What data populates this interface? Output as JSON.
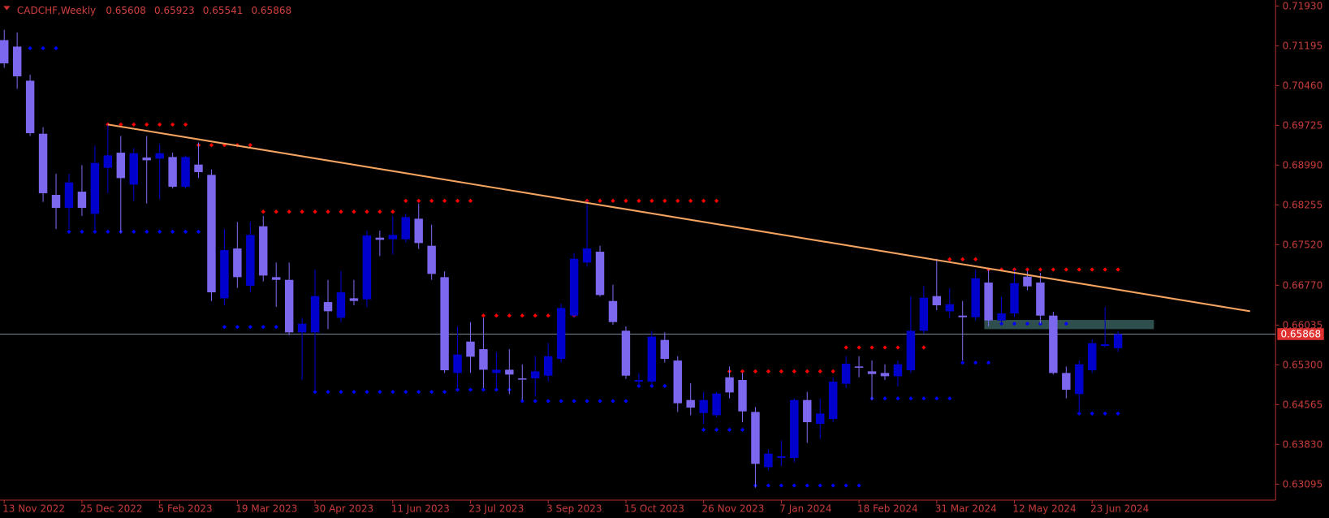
{
  "chart_data": {
    "type": "candlestick",
    "title": "CADCHF,Weekly",
    "categories": [
      "13 Nov 2022",
      null,
      null,
      null,
      null,
      null,
      "25 Dec 2022",
      null,
      null,
      null,
      null,
      null,
      "5 Feb 2023",
      null,
      null,
      null,
      null,
      null,
      "19 Mar 2023",
      null,
      null,
      null,
      null,
      null,
      "30 Apr 2023",
      null,
      null,
      null,
      null,
      null,
      "11 Jun 2023",
      null,
      null,
      null,
      null,
      null,
      "23 Jul 2023",
      null,
      null,
      null,
      null,
      null,
      "3 Sep 2023",
      null,
      null,
      null,
      null,
      null,
      "15 Oct 2023",
      null,
      null,
      null,
      null,
      null,
      "26 Nov 2023",
      null,
      null,
      null,
      null,
      null,
      "7 Jan 2024",
      null,
      null,
      null,
      null,
      null,
      "18 Feb 2024",
      null,
      null,
      null,
      null,
      null,
      "31 Mar 2024",
      null,
      null,
      null,
      null,
      null,
      "12 May 2024",
      null,
      null,
      null,
      null,
      null,
      "23 Jun 2024",
      null,
      null
    ],
    "open": [
      0.713,
      0.7118,
      0.7055,
      0.6957,
      0.6844,
      0.682,
      0.685,
      0.6809,
      0.6894,
      0.6922,
      0.6863,
      0.6913,
      0.6911,
      0.6914,
      0.6859,
      0.69,
      0.6881,
      0.6653,
      0.6745,
      0.6676,
      0.6786,
      0.6692,
      0.6687,
      0.659,
      0.659,
      0.6646,
      0.6617,
      0.6653,
      0.6651,
      0.6765,
      0.6762,
      0.6762,
      0.68,
      0.675,
      0.6692,
      0.6515,
      0.6573,
      0.6559,
      0.6515,
      0.6521,
      0.6505,
      0.6505,
      0.651,
      0.6541,
      0.6621,
      0.6719,
      0.6739,
      0.6648,
      0.6593,
      0.6499,
      0.6499,
      0.6576,
      0.6538,
      0.6465,
      0.6441,
      0.6437,
      0.6507,
      0.6502,
      0.6443,
      0.6341,
      0.6358,
      0.6358,
      0.6465,
      0.6421,
      0.643,
      0.6495,
      0.6527,
      0.6518,
      0.6515,
      0.6509,
      0.652,
      0.6593,
      0.6657,
      0.6629,
      0.6621,
      0.6618,
      0.6682,
      0.6612,
      0.6625,
      0.6693,
      0.6682,
      0.6621,
      0.6515,
      0.6476,
      0.652,
      0.6565,
      0.65608
    ],
    "high": [
      0.7149,
      0.7144,
      0.7066,
      0.6969,
      0.6883,
      0.6883,
      0.6899,
      0.6935,
      0.6974,
      0.6953,
      0.693,
      0.6953,
      0.6938,
      0.6922,
      0.6917,
      0.6941,
      0.6891,
      0.6781,
      0.6794,
      0.6794,
      0.6805,
      0.6719,
      0.6719,
      0.6617,
      0.6706,
      0.6687,
      0.6703,
      0.6687,
      0.6778,
      0.6778,
      0.6805,
      0.6809,
      0.6828,
      0.6789,
      0.6703,
      0.6601,
      0.6609,
      0.6617,
      0.6554,
      0.6559,
      0.6531,
      0.6546,
      0.657,
      0.6643,
      0.6737,
      0.6833,
      0.675,
      0.6678,
      0.6601,
      0.6515,
      0.6593,
      0.659,
      0.6546,
      0.6496,
      0.648,
      0.648,
      0.6527,
      0.6515,
      0.6452,
      0.6374,
      0.639,
      0.6468,
      0.648,
      0.6468,
      0.6507,
      0.6546,
      0.6546,
      0.6538,
      0.6531,
      0.6538,
      0.6656,
      0.6675,
      0.6726,
      0.6672,
      0.6648,
      0.6706,
      0.6706,
      0.6656,
      0.6706,
      0.6703,
      0.67,
      0.6628,
      0.6527,
      0.6538,
      0.6577,
      0.6637,
      0.65923
    ],
    "low": [
      0.7079,
      0.704,
      0.6953,
      0.6831,
      0.6781,
      0.6781,
      0.6805,
      0.6773,
      0.6847,
      0.6773,
      0.6833,
      0.6828,
      0.6836,
      0.6856,
      0.6856,
      0.6875,
      0.6648,
      0.664,
      0.6672,
      0.6664,
      0.6684,
      0.6637,
      0.6585,
      0.6502,
      0.6484,
      0.6596,
      0.6609,
      0.664,
      0.6637,
      0.6731,
      0.6734,
      0.6756,
      0.6744,
      0.6687,
      0.6515,
      0.648,
      0.6515,
      0.6487,
      0.6487,
      0.6476,
      0.6465,
      0.6471,
      0.6499,
      0.6534,
      0.6617,
      0.6711,
      0.6656,
      0.6604,
      0.6504,
      0.649,
      0.6491,
      0.6534,
      0.6443,
      0.6437,
      0.6421,
      0.6433,
      0.6468,
      0.6424,
      0.6303,
      0.6335,
      0.6343,
      0.635,
      0.6386,
      0.6393,
      0.6424,
      0.6487,
      0.6507,
      0.6465,
      0.6502,
      0.649,
      0.6515,
      0.6588,
      0.6631,
      0.6617,
      0.6538,
      0.6612,
      0.6601,
      0.6603,
      0.6618,
      0.6668,
      0.6606,
      0.6512,
      0.6468,
      0.6437,
      0.6515,
      0.6562,
      0.65541
    ],
    "close": [
      0.7087,
      0.7063,
      0.6958,
      0.6847,
      0.682,
      0.6867,
      0.682,
      0.6903,
      0.6917,
      0.6875,
      0.6921,
      0.6908,
      0.6921,
      0.6859,
      0.6914,
      0.6886,
      0.6664,
      0.6742,
      0.6692,
      0.677,
      0.6695,
      0.6687,
      0.659,
      0.6606,
      0.6657,
      0.6629,
      0.6664,
      0.6648,
      0.6769,
      0.6761,
      0.677,
      0.6803,
      0.6755,
      0.6698,
      0.652,
      0.6549,
      0.6545,
      0.6521,
      0.6521,
      0.6512,
      0.6504,
      0.6518,
      0.6546,
      0.6635,
      0.6726,
      0.6745,
      0.6659,
      0.6609,
      0.651,
      0.6502,
      0.6582,
      0.6541,
      0.6459,
      0.6451,
      0.6465,
      0.6477,
      0.6479,
      0.6444,
      0.6347,
      0.6366,
      0.6361,
      0.6465,
      0.6424,
      0.644,
      0.6499,
      0.6532,
      0.6526,
      0.6513,
      0.6509,
      0.6531,
      0.6593,
      0.6654,
      0.664,
      0.6642,
      0.6618,
      0.669,
      0.6612,
      0.6625,
      0.6681,
      0.6675,
      0.6621,
      0.6515,
      0.6484,
      0.6531,
      0.657,
      0.6568,
      0.65868
    ],
    "up_color": "#0000cd",
    "down_color": "#7b68ee",
    "ylim": [
      0.628,
      0.7204
    ],
    "yticks": [
      {
        "value": 0.7193,
        "label": "0.71930"
      },
      {
        "value": 0.71195,
        "label": "0.71195"
      },
      {
        "value": 0.7046,
        "label": "0.70460"
      },
      {
        "value": 0.69725,
        "label": "0.69725"
      },
      {
        "value": 0.6899,
        "label": "0.68990"
      },
      {
        "value": 0.68255,
        "label": "0.68255"
      },
      {
        "value": 0.6752,
        "label": "0.67520"
      },
      {
        "value": 0.6677,
        "label": "0.66770"
      },
      {
        "value": 0.66035,
        "label": "0.66035"
      },
      {
        "value": 0.653,
        "label": "0.65300"
      },
      {
        "value": 0.64565,
        "label": "0.64565"
      },
      {
        "value": 0.6383,
        "label": "0.63830"
      },
      {
        "value": 0.63095,
        "label": "0.63095"
      }
    ],
    "resistance_color": "#ff0000",
    "resistance_levels": [
      {
        "value": 0.6974,
        "start": 8,
        "end": 14
      },
      {
        "value": 0.6936,
        "start": 15,
        "end": 19
      },
      {
        "value": 0.6813,
        "start": 20,
        "end": 30
      },
      {
        "value": 0.6833,
        "start": 31,
        "end": 36
      },
      {
        "value": 0.6621,
        "start": 37,
        "end": 44
      },
      {
        "value": 0.6833,
        "start": 45,
        "end": 55
      },
      {
        "value": 0.6518,
        "start": 56,
        "end": 64
      },
      {
        "value": 0.6562,
        "start": 65,
        "end": 71
      },
      {
        "value": 0.6725,
        "start": 73,
        "end": 75
      },
      {
        "value": 0.6706,
        "start": 76,
        "end": 86
      }
    ],
    "support_color": "#0000ff",
    "support_levels": [
      {
        "value": 0.7115,
        "start": 0,
        "end": 4
      },
      {
        "value": 0.6776,
        "start": 5,
        "end": 15
      },
      {
        "value": 0.66,
        "start": 17,
        "end": 21
      },
      {
        "value": 0.648,
        "start": 24,
        "end": 34
      },
      {
        "value": 0.6484,
        "start": 35,
        "end": 39
      },
      {
        "value": 0.6463,
        "start": 40,
        "end": 48
      },
      {
        "value": 0.6491,
        "start": 49,
        "end": 51
      },
      {
        "value": 0.641,
        "start": 54,
        "end": 57
      },
      {
        "value": 0.6307,
        "start": 58,
        "end": 66
      },
      {
        "value": 0.6468,
        "start": 67,
        "end": 73
      },
      {
        "value": 0.6534,
        "start": 74,
        "end": 76
      },
      {
        "value": 0.6606,
        "start": 77,
        "end": 82
      },
      {
        "value": 0.644,
        "start": 83,
        "end": 86
      }
    ],
    "trendline": {
      "x": [
        8,
        96.2
      ],
      "values": [
        0.6974,
        0.6629
      ],
      "color": "#f4a460"
    },
    "zone": {
      "x": [
        76,
        89.1
      ],
      "values": [
        0.6613,
        0.6596
      ],
      "color": "#2f4f4f"
    },
    "price_line_color": "#778899",
    "axis_color": "#b03030"
  }
}
